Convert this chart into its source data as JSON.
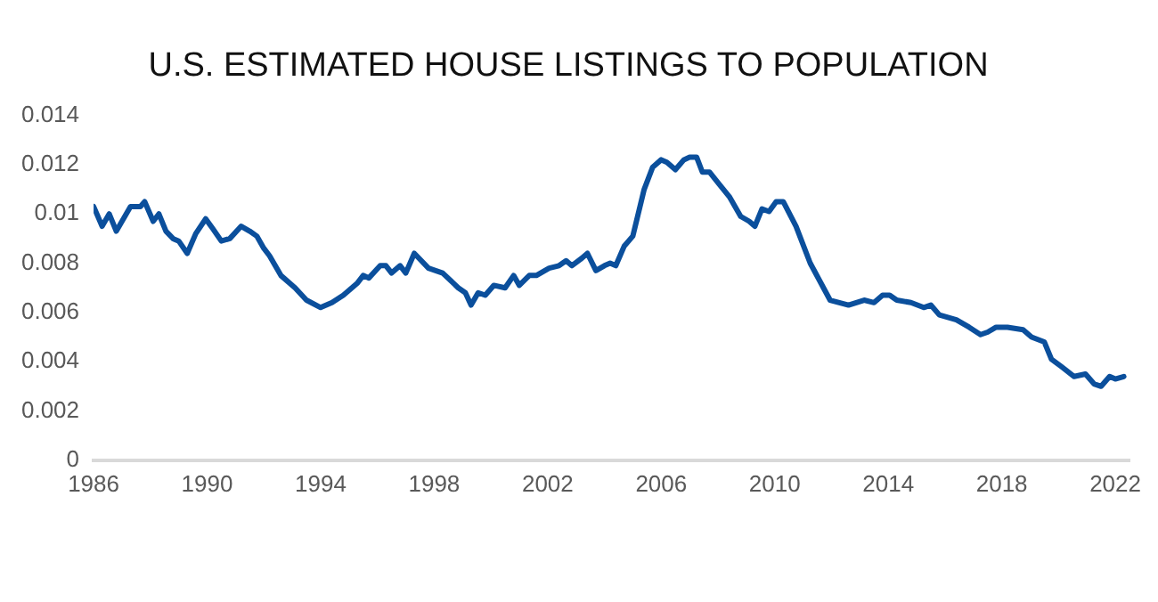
{
  "chart_data": {
    "type": "line",
    "title": "U.S. ESTIMATED HOUSE LISTINGS TO POPULATION",
    "x": [
      1986.0,
      1986.3,
      1986.55,
      1986.8,
      1987.3,
      1987.65,
      1987.8,
      1988.1,
      1988.3,
      1988.55,
      1988.8,
      1989.0,
      1989.3,
      1989.6,
      1989.95,
      1990.2,
      1990.5,
      1990.8,
      1991.2,
      1991.5,
      1991.75,
      1992.0,
      1992.2,
      1992.6,
      1993.1,
      1993.5,
      1994.0,
      1994.4,
      1994.8,
      1995.3,
      1995.5,
      1995.7,
      1996.1,
      1996.3,
      1996.5,
      1996.8,
      1997.0,
      1997.3,
      1997.8,
      1998.3,
      1998.85,
      1999.1,
      1999.3,
      1999.55,
      1999.8,
      2000.1,
      2000.5,
      2000.8,
      2001.0,
      2001.35,
      2001.6,
      2002.05,
      2002.4,
      2002.65,
      2002.85,
      2003.2,
      2003.4,
      2003.7,
      2004.0,
      2004.2,
      2004.4,
      2004.7,
      2005.0,
      2005.4,
      2005.7,
      2006.0,
      2006.2,
      2006.5,
      2006.8,
      2007.0,
      2007.25,
      2007.45,
      2007.7,
      2008.05,
      2008.4,
      2008.8,
      2009.1,
      2009.3,
      2009.55,
      2009.8,
      2010.05,
      2010.3,
      2010.75,
      2011.25,
      2011.95,
      2012.6,
      2013.15,
      2013.5,
      2013.8,
      2014.05,
      2014.3,
      2014.8,
      2015.25,
      2015.5,
      2015.8,
      2016.4,
      2016.85,
      2017.25,
      2017.5,
      2017.8,
      2018.2,
      2018.75,
      2019.05,
      2019.5,
      2019.75,
      2020.1,
      2020.55,
      2020.95,
      2021.25,
      2021.5,
      2021.8,
      2022.0,
      2022.3
    ],
    "series": [
      {
        "color": "#0b4f9c",
        "values": [
          0.0103,
          0.0095,
          0.01,
          0.0093,
          0.0103,
          0.0103,
          0.0105,
          0.0097,
          0.01,
          0.0093,
          0.009,
          0.0089,
          0.0084,
          0.0092,
          0.0098,
          0.0094,
          0.0089,
          0.009,
          0.0095,
          0.0093,
          0.0091,
          0.0086,
          0.0083,
          0.0075,
          0.007,
          0.0065,
          0.0062,
          0.0064,
          0.0067,
          0.0072,
          0.0075,
          0.0074,
          0.0079,
          0.0079,
          0.0076,
          0.0079,
          0.0076,
          0.0084,
          0.0078,
          0.0076,
          0.007,
          0.0068,
          0.0063,
          0.0068,
          0.0067,
          0.0071,
          0.007,
          0.0075,
          0.0071,
          0.0075,
          0.0075,
          0.0078,
          0.0079,
          0.0081,
          0.0079,
          0.0082,
          0.0084,
          0.0077,
          0.0079,
          0.008,
          0.0079,
          0.0087,
          0.0091,
          0.011,
          0.0119,
          0.0122,
          0.0121,
          0.0118,
          0.0122,
          0.0123,
          0.0123,
          0.0117,
          0.0117,
          0.0112,
          0.0107,
          0.0099,
          0.0097,
          0.0095,
          0.0102,
          0.0101,
          0.0105,
          0.0105,
          0.0095,
          0.008,
          0.0065,
          0.0063,
          0.0065,
          0.0064,
          0.0067,
          0.0067,
          0.0065,
          0.0064,
          0.0062,
          0.0063,
          0.0059,
          0.0057,
          0.0054,
          0.0051,
          0.0052,
          0.0054,
          0.0054,
          0.0053,
          0.005,
          0.0048,
          0.0041,
          0.0038,
          0.0034,
          0.0035,
          0.0031,
          0.003,
          0.0034,
          0.0033,
          0.0034
        ]
      }
    ],
    "xlim": [
      1986,
      2022.5
    ],
    "xticks": [
      1986,
      1990,
      1994,
      1998,
      2002,
      2006,
      2010,
      2014,
      2018,
      2022
    ],
    "ylim": [
      0,
      0.014
    ],
    "yticks": [
      0,
      0.002,
      0.004,
      0.006,
      0.008,
      0.01,
      0.012,
      0.014
    ],
    "grid": false,
    "legend": false,
    "marker": "none",
    "line_style": "solid"
  }
}
